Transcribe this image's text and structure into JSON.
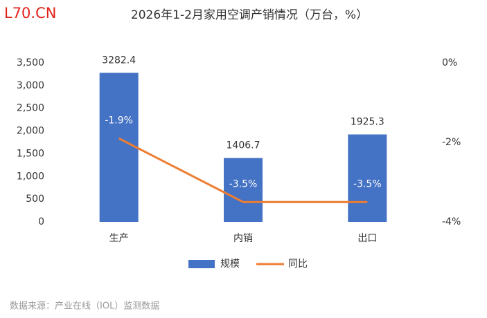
{
  "logo": "L70.CN",
  "source": "数据来源：产业在线（IOL）监测数据",
  "chart_data": {
    "type": "bar",
    "title": "2026年1-2月家用空调产销情况（万台，%）",
    "categories": [
      "生产",
      "内销",
      "出口"
    ],
    "series": [
      {
        "name": "规模",
        "color": "#4472c4",
        "values": [
          3282.4,
          1406.7,
          1925.3
        ]
      },
      {
        "name": "同比",
        "type": "line",
        "axis": "y2",
        "color": "#ed7d31",
        "values": [
          -1.9,
          -3.5,
          -3.5
        ],
        "value_labels": [
          "-1.9%",
          "-3.5%",
          "-3.5%"
        ]
      }
    ],
    "ylim": [
      0,
      3500
    ],
    "yticks": [
      0,
      500,
      {
        "value": 1000,
        "label": "1,000"
      },
      {
        "value": 1500,
        "label": "1,500"
      },
      {
        "value": 2000,
        "label": "2,000"
      },
      {
        "value": 2500,
        "label": "2,500"
      },
      {
        "value": 3000,
        "label": "3,000"
      },
      {
        "value": 3500,
        "label": "3,500"
      }
    ],
    "y2lim": [
      -4,
      0
    ],
    "y2ticks": [
      {
        "value": -4,
        "label": "-4%"
      },
      {
        "value": -2,
        "label": "-2%"
      },
      {
        "value": 0,
        "label": "0%"
      }
    ],
    "grid": false,
    "legend": "bottom"
  }
}
